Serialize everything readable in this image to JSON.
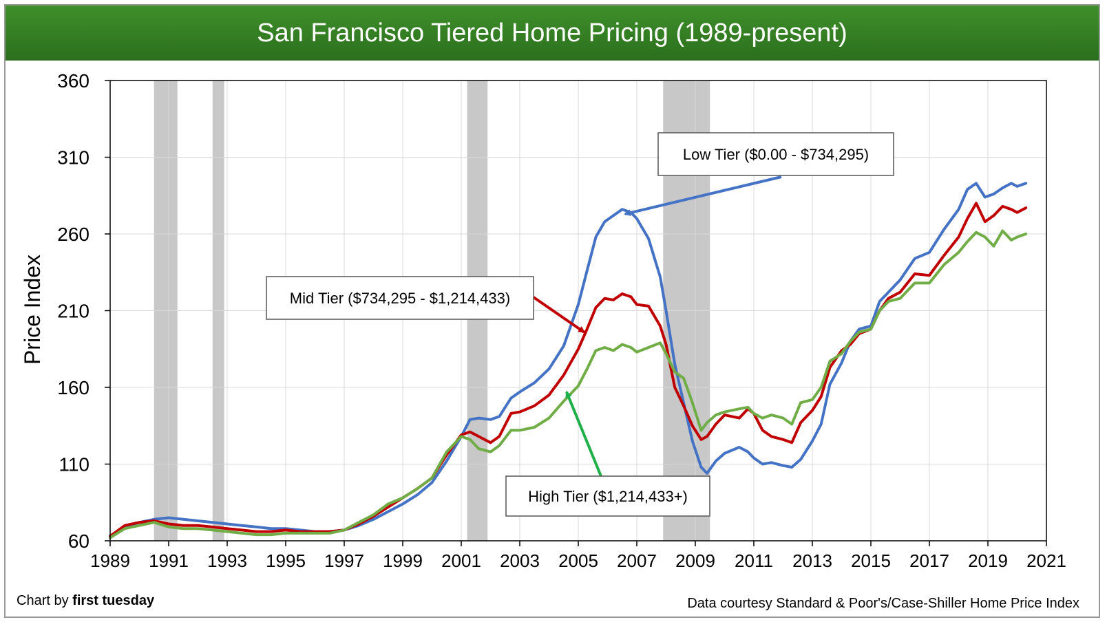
{
  "title": "San Francisco Tiered Home Pricing (1989-present)",
  "credit_prefix": "Chart by ",
  "credit_name": "first tuesday",
  "source": "Data courtesy Standard & Poor's/Case-Shiller Home Price Index",
  "colors": {
    "title_bar": "#2e7420",
    "low_tier": "#4472c4",
    "mid_tier": "#c00000",
    "high_tier": "#70ad47",
    "recession": "#c8c8c8",
    "grid": "#d9d9d9",
    "high_arrow": "#1fb04a"
  },
  "chart_data": {
    "type": "line",
    "title": "San Francisco Tiered Home Pricing (1989-present)",
    "xlabel": "",
    "ylabel": "Price Index",
    "xlim": [
      1989,
      2021
    ],
    "ylim": [
      60,
      360
    ],
    "x_ticks": [
      "1989",
      "1991",
      "1993",
      "1995",
      "1997",
      "1999",
      "2001",
      "2003",
      "2005",
      "2007",
      "2009",
      "2011",
      "2013",
      "2015",
      "2017",
      "2019",
      "2021"
    ],
    "y_ticks": [
      "60",
      "110",
      "160",
      "210",
      "260",
      "310",
      "360"
    ],
    "grid": true,
    "legend": "callouts",
    "recessions": [
      [
        1990.5,
        1991.3
      ],
      [
        1992.5,
        1992.9
      ],
      [
        2001.2,
        2001.9
      ],
      [
        2007.9,
        2009.5
      ]
    ],
    "annotations": [
      {
        "series": "Low Tier",
        "text": "Low Tier ($0.00 - $734,295)",
        "points_to": [
          2006.6,
          273
        ]
      },
      {
        "series": "Mid Tier",
        "text": "Mid Tier ($734,295 - $1,214,433)",
        "points_to": [
          2005.2,
          196
        ]
      },
      {
        "series": "High Tier",
        "text": "High Tier ($1,214,433+)",
        "points_to": [
          2004.6,
          157
        ]
      }
    ],
    "series": [
      {
        "name": "Low Tier",
        "color": "#4472c4",
        "points": [
          [
            1989.0,
            62
          ],
          [
            1989.5,
            69
          ],
          [
            1990.0,
            72
          ],
          [
            1990.5,
            74
          ],
          [
            1991.0,
            75
          ],
          [
            1991.5,
            74
          ],
          [
            1992.0,
            73
          ],
          [
            1992.5,
            72
          ],
          [
            1993.0,
            71
          ],
          [
            1993.5,
            70
          ],
          [
            1994.0,
            69
          ],
          [
            1994.5,
            68
          ],
          [
            1995.0,
            68
          ],
          [
            1995.5,
            67
          ],
          [
            1996.0,
            66
          ],
          [
            1996.5,
            66
          ],
          [
            1997.0,
            67
          ],
          [
            1997.5,
            70
          ],
          [
            1998.0,
            74
          ],
          [
            1998.5,
            79
          ],
          [
            1999.0,
            84
          ],
          [
            1999.5,
            90
          ],
          [
            2000.0,
            98
          ],
          [
            2000.5,
            112
          ],
          [
            2001.0,
            128
          ],
          [
            2001.3,
            139
          ],
          [
            2001.6,
            140
          ],
          [
            2002.0,
            139
          ],
          [
            2002.3,
            141
          ],
          [
            2002.7,
            153
          ],
          [
            2003.0,
            157
          ],
          [
            2003.5,
            163
          ],
          [
            2004.0,
            172
          ],
          [
            2004.5,
            187
          ],
          [
            2005.0,
            214
          ],
          [
            2005.3,
            236
          ],
          [
            2005.6,
            258
          ],
          [
            2005.9,
            268
          ],
          [
            2006.2,
            272
          ],
          [
            2006.5,
            276
          ],
          [
            2006.8,
            274
          ],
          [
            2007.0,
            270
          ],
          [
            2007.4,
            257
          ],
          [
            2007.8,
            232
          ],
          [
            2008.0,
            210
          ],
          [
            2008.3,
            175
          ],
          [
            2008.6,
            150
          ],
          [
            2008.9,
            125
          ],
          [
            2009.2,
            108
          ],
          [
            2009.4,
            104
          ],
          [
            2009.7,
            112
          ],
          [
            2010.0,
            117
          ],
          [
            2010.5,
            121
          ],
          [
            2010.8,
            118
          ],
          [
            2011.0,
            114
          ],
          [
            2011.3,
            110
          ],
          [
            2011.6,
            111
          ],
          [
            2012.0,
            109
          ],
          [
            2012.3,
            108
          ],
          [
            2012.6,
            113
          ],
          [
            2013.0,
            125
          ],
          [
            2013.3,
            136
          ],
          [
            2013.6,
            162
          ],
          [
            2014.0,
            176
          ],
          [
            2014.3,
            190
          ],
          [
            2014.6,
            198
          ],
          [
            2015.0,
            200
          ],
          [
            2015.3,
            216
          ],
          [
            2015.6,
            222
          ],
          [
            2016.0,
            230
          ],
          [
            2016.5,
            244
          ],
          [
            2017.0,
            248
          ],
          [
            2017.5,
            263
          ],
          [
            2018.0,
            276
          ],
          [
            2018.3,
            289
          ],
          [
            2018.6,
            293
          ],
          [
            2018.9,
            284
          ],
          [
            2019.2,
            286
          ],
          [
            2019.5,
            290
          ],
          [
            2019.8,
            293
          ],
          [
            2020.0,
            291
          ],
          [
            2020.3,
            293
          ]
        ]
      },
      {
        "name": "Mid Tier",
        "color": "#c00000",
        "points": [
          [
            1989.0,
            63
          ],
          [
            1989.5,
            70
          ],
          [
            1990.0,
            72
          ],
          [
            1990.5,
            73
          ],
          [
            1991.0,
            71
          ],
          [
            1991.5,
            70
          ],
          [
            1992.0,
            70
          ],
          [
            1992.5,
            69
          ],
          [
            1993.0,
            68
          ],
          [
            1993.5,
            67
          ],
          [
            1994.0,
            66
          ],
          [
            1994.5,
            66
          ],
          [
            1995.0,
            67
          ],
          [
            1995.5,
            66
          ],
          [
            1996.0,
            66
          ],
          [
            1996.5,
            66
          ],
          [
            1997.0,
            67
          ],
          [
            1997.5,
            71
          ],
          [
            1998.0,
            76
          ],
          [
            1998.5,
            82
          ],
          [
            1999.0,
            88
          ],
          [
            1999.5,
            94
          ],
          [
            2000.0,
            101
          ],
          [
            2000.5,
            116
          ],
          [
            2001.0,
            129
          ],
          [
            2001.3,
            131
          ],
          [
            2001.6,
            128
          ],
          [
            2002.0,
            124
          ],
          [
            2002.3,
            128
          ],
          [
            2002.7,
            143
          ],
          [
            2003.0,
            144
          ],
          [
            2003.5,
            148
          ],
          [
            2004.0,
            155
          ],
          [
            2004.5,
            168
          ],
          [
            2005.0,
            185
          ],
          [
            2005.3,
            198
          ],
          [
            2005.6,
            212
          ],
          [
            2005.9,
            218
          ],
          [
            2006.2,
            217
          ],
          [
            2006.5,
            221
          ],
          [
            2006.8,
            219
          ],
          [
            2007.0,
            214
          ],
          [
            2007.4,
            213
          ],
          [
            2007.8,
            200
          ],
          [
            2008.0,
            188
          ],
          [
            2008.3,
            160
          ],
          [
            2008.6,
            148
          ],
          [
            2008.9,
            135
          ],
          [
            2009.2,
            126
          ],
          [
            2009.4,
            128
          ],
          [
            2009.7,
            136
          ],
          [
            2010.0,
            142
          ],
          [
            2010.5,
            140
          ],
          [
            2010.8,
            146
          ],
          [
            2011.0,
            143
          ],
          [
            2011.3,
            132
          ],
          [
            2011.6,
            128
          ],
          [
            2012.0,
            126
          ],
          [
            2012.3,
            124
          ],
          [
            2012.6,
            137
          ],
          [
            2013.0,
            145
          ],
          [
            2013.3,
            154
          ],
          [
            2013.6,
            173
          ],
          [
            2014.0,
            184
          ],
          [
            2014.3,
            188
          ],
          [
            2014.6,
            195
          ],
          [
            2015.0,
            198
          ],
          [
            2015.3,
            210
          ],
          [
            2015.6,
            218
          ],
          [
            2016.0,
            222
          ],
          [
            2016.5,
            234
          ],
          [
            2017.0,
            233
          ],
          [
            2017.5,
            246
          ],
          [
            2018.0,
            258
          ],
          [
            2018.3,
            270
          ],
          [
            2018.6,
            280
          ],
          [
            2018.9,
            268
          ],
          [
            2019.2,
            272
          ],
          [
            2019.5,
            278
          ],
          [
            2019.8,
            276
          ],
          [
            2020.0,
            274
          ],
          [
            2020.3,
            277
          ]
        ]
      },
      {
        "name": "High Tier",
        "color": "#70ad47",
        "points": [
          [
            1989.0,
            62
          ],
          [
            1989.5,
            68
          ],
          [
            1990.0,
            70
          ],
          [
            1990.5,
            72
          ],
          [
            1991.0,
            69
          ],
          [
            1991.5,
            68
          ],
          [
            1992.0,
            68
          ],
          [
            1992.5,
            67
          ],
          [
            1993.0,
            66
          ],
          [
            1993.5,
            65
          ],
          [
            1994.0,
            64
          ],
          [
            1994.5,
            64
          ],
          [
            1995.0,
            65
          ],
          [
            1995.5,
            65
          ],
          [
            1996.0,
            65
          ],
          [
            1996.5,
            65
          ],
          [
            1997.0,
            67
          ],
          [
            1997.5,
            72
          ],
          [
            1998.0,
            77
          ],
          [
            1998.5,
            84
          ],
          [
            1999.0,
            88
          ],
          [
            1999.5,
            94
          ],
          [
            2000.0,
            101
          ],
          [
            2000.5,
            118
          ],
          [
            2001.0,
            128
          ],
          [
            2001.3,
            126
          ],
          [
            2001.6,
            120
          ],
          [
            2002.0,
            118
          ],
          [
            2002.3,
            122
          ],
          [
            2002.7,
            132
          ],
          [
            2003.0,
            132
          ],
          [
            2003.5,
            134
          ],
          [
            2004.0,
            140
          ],
          [
            2004.5,
            151
          ],
          [
            2005.0,
            161
          ],
          [
            2005.3,
            172
          ],
          [
            2005.6,
            184
          ],
          [
            2005.9,
            186
          ],
          [
            2006.2,
            184
          ],
          [
            2006.5,
            188
          ],
          [
            2006.8,
            186
          ],
          [
            2007.0,
            183
          ],
          [
            2007.4,
            186
          ],
          [
            2007.8,
            189
          ],
          [
            2008.0,
            182
          ],
          [
            2008.3,
            170
          ],
          [
            2008.6,
            166
          ],
          [
            2008.9,
            150
          ],
          [
            2009.2,
            132
          ],
          [
            2009.4,
            137
          ],
          [
            2009.7,
            142
          ],
          [
            2010.0,
            144
          ],
          [
            2010.5,
            146
          ],
          [
            2010.8,
            147
          ],
          [
            2011.0,
            143
          ],
          [
            2011.3,
            140
          ],
          [
            2011.6,
            142
          ],
          [
            2012.0,
            140
          ],
          [
            2012.3,
            136
          ],
          [
            2012.6,
            150
          ],
          [
            2013.0,
            152
          ],
          [
            2013.3,
            160
          ],
          [
            2013.6,
            177
          ],
          [
            2014.0,
            182
          ],
          [
            2014.3,
            190
          ],
          [
            2014.6,
            196
          ],
          [
            2015.0,
            198
          ],
          [
            2015.3,
            210
          ],
          [
            2015.6,
            216
          ],
          [
            2016.0,
            218
          ],
          [
            2016.5,
            228
          ],
          [
            2017.0,
            228
          ],
          [
            2017.5,
            240
          ],
          [
            2018.0,
            248
          ],
          [
            2018.3,
            255
          ],
          [
            2018.6,
            261
          ],
          [
            2018.9,
            258
          ],
          [
            2019.2,
            252
          ],
          [
            2019.5,
            262
          ],
          [
            2019.8,
            256
          ],
          [
            2020.0,
            258
          ],
          [
            2020.3,
            260
          ]
        ]
      }
    ]
  }
}
